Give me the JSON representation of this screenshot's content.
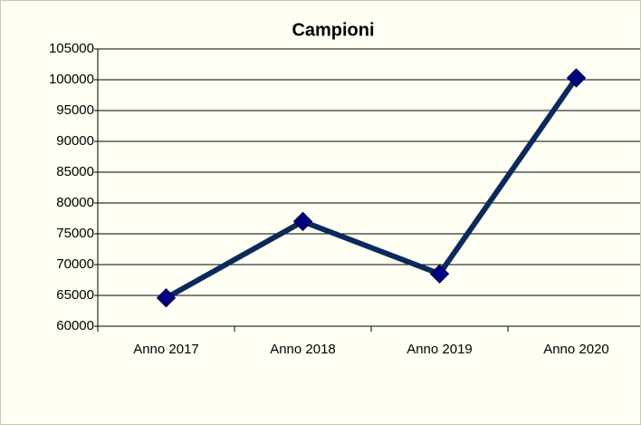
{
  "chart_data": {
    "type": "line",
    "title": "Campioni",
    "categories": [
      "Anno 2017",
      "Anno 2018",
      "Anno 2019",
      "Anno 2020"
    ],
    "series": [
      {
        "name": "Campioni",
        "color": "#0b2a5b",
        "values": [
          64600,
          77000,
          68500,
          100300
        ]
      }
    ],
    "marker_color": "#000080",
    "ylim": [
      60000,
      105000
    ],
    "yticks": [
      60000,
      65000,
      70000,
      75000,
      80000,
      85000,
      90000,
      95000,
      100000,
      105000
    ],
    "grid": true
  }
}
